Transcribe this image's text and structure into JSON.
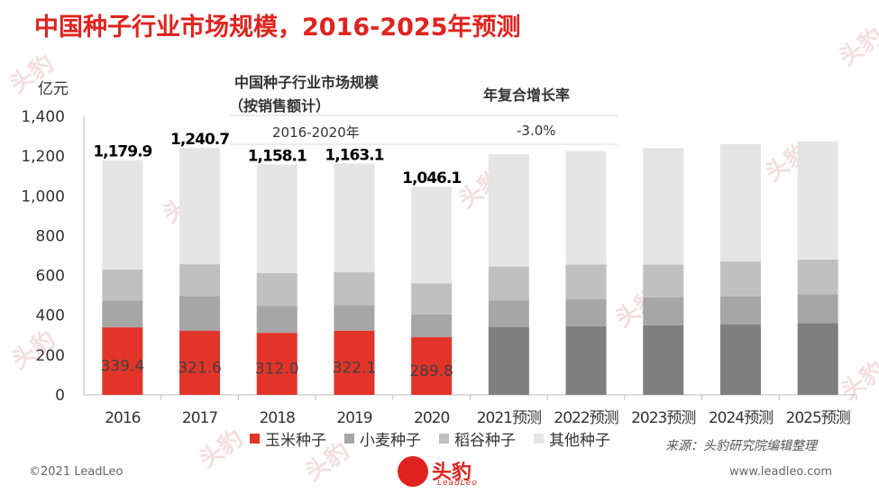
{
  "title": "中国种子行业市场规模，2016-2025年预测",
  "watermark": "头豹",
  "table": {
    "col1_header_line1": "中国种子行业市场规模",
    "col1_header_line2": "（按销售额计）",
    "col2_header": "年复合增长率",
    "row_label": "2016-2020年",
    "row_value": "-3.0%"
  },
  "source": "来源：头豹研究院编辑整理",
  "footer_left": "©2021 LeadLeo",
  "footer_right": "www.leadleo.com",
  "logo": {
    "name": "头豹",
    "sub": "LeadLeo"
  },
  "colors": {
    "title": "#e0231e",
    "corn": "#e3342a",
    "corn_forecast": "#7f7f7f",
    "wheat": "#a6a6a6",
    "rice": "#c0c0c0",
    "other": "#e5e5e5"
  },
  "chart_data": {
    "type": "bar",
    "stacked": true,
    "ylabel": "亿元",
    "ylim": [
      0,
      1400
    ],
    "yticks": [
      0,
      200,
      400,
      600,
      800,
      1000,
      1200,
      1400
    ],
    "ytick_labels": [
      "0",
      "200",
      "400",
      "600",
      "800",
      "1,000",
      "1,200",
      "1,400"
    ],
    "categories": [
      "2016",
      "2017",
      "2018",
      "2019",
      "2020",
      "2021预测",
      "2022预测",
      "2023预测",
      "2024预测",
      "2025预测"
    ],
    "series": [
      {
        "name": "玉米种子",
        "values": [
          339.4,
          321.6,
          312.0,
          322.1,
          289.8,
          340,
          345,
          350,
          355,
          360
        ],
        "labels": [
          "339.4",
          "321.6",
          "312.0",
          "322.1",
          "289.8",
          "",
          "",
          "",
          "",
          ""
        ]
      },
      {
        "name": "小麦种子",
        "values": [
          135,
          175,
          135,
          130,
          115,
          135,
          135,
          140,
          140,
          145
        ]
      },
      {
        "name": "稻谷种子",
        "values": [
          155,
          160,
          165,
          165,
          155,
          170,
          175,
          165,
          175,
          175
        ]
      },
      {
        "name": "其他种子",
        "values": [
          550.5,
          584.1,
          546.1,
          546.0,
          486.3,
          565,
          570,
          585,
          590,
          595
        ]
      }
    ],
    "totals": [
      1179.9,
      1240.7,
      1158.1,
      1163.1,
      1046.1
    ],
    "total_labels": [
      "1,179.9",
      "1,240.7",
      "1,158.1",
      "1,163.1",
      "1,046.1"
    ],
    "legend_position": "bottom"
  }
}
